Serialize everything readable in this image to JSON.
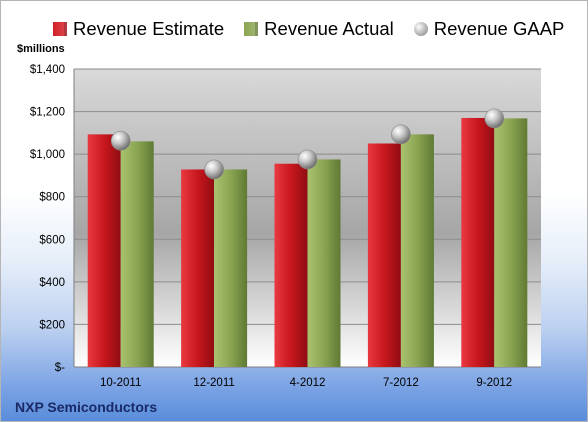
{
  "legend": [
    {
      "label": "Revenue Estimate",
      "color": "#d21f26",
      "kind": "square"
    },
    {
      "label": "Revenue Actual",
      "color": "#8ba653",
      "kind": "square"
    },
    {
      "label": "Revenue GAAP",
      "color": "#b4b4b4",
      "kind": "circle"
    }
  ],
  "unit_label": "$millions",
  "company": "NXP Semiconductors",
  "chart_data": {
    "type": "bar",
    "title": "",
    "xlabel": "",
    "ylabel": "$millions",
    "categories": [
      "10-2011",
      "12-2011",
      "4-2012",
      "7-2012",
      "9-2012"
    ],
    "series": [
      {
        "name": "Revenue Estimate",
        "type": "bar",
        "color": "#d21f26",
        "values": [
          1093,
          928,
          955,
          1050,
          1170
        ]
      },
      {
        "name": "Revenue Actual",
        "type": "bar",
        "color": "#8ba653",
        "values": [
          1060,
          928,
          975,
          1093,
          1168
        ]
      },
      {
        "name": "Revenue GAAP",
        "type": "marker",
        "color": "#b4b4b4",
        "values": [
          1063,
          928,
          975,
          1093,
          1168
        ]
      }
    ],
    "ylim": [
      0,
      1400
    ],
    "yticks": [
      0,
      200,
      400,
      600,
      800,
      1000,
      1200,
      1400
    ],
    "ytick_labels": [
      "$-",
      "$200",
      "$400",
      "$600",
      "$800",
      "$1,000",
      "$1,200",
      "$1,400"
    ],
    "grid": true
  }
}
